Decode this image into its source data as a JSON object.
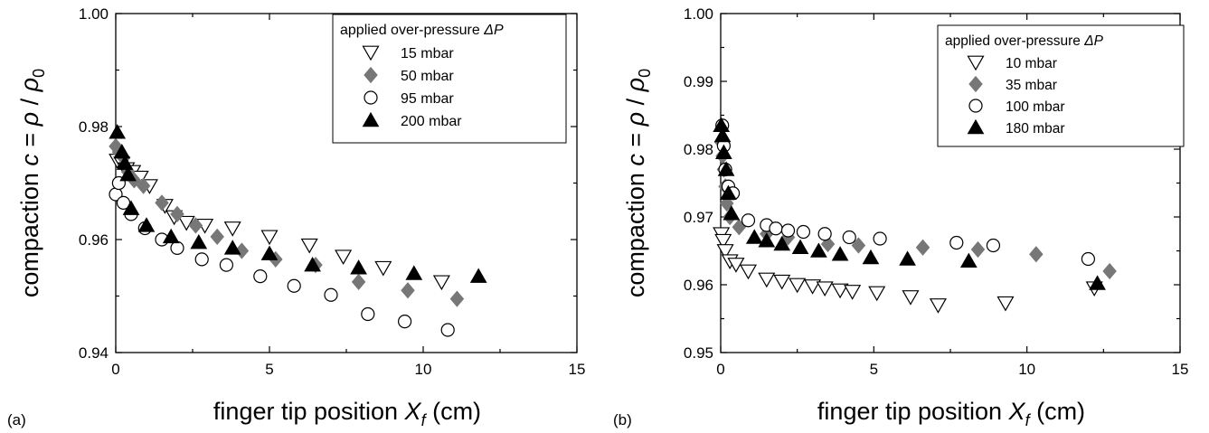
{
  "chart_data": [
    {
      "type": "scatter",
      "panel_label": "(a)",
      "xlabel_main": "finger tip position ",
      "xlabel_var": "X",
      "xlabel_sub": "f",
      "xlabel_unit": "  (cm)",
      "ylabel_main": "compaction ",
      "ylabel_var": "c",
      "ylabel_eq": " = ",
      "ylabel_rho": "ρ",
      "ylabel_div": " / ",
      "ylabel_rho0": "ρ",
      "ylabel_sub": "0",
      "xlim": [
        0,
        15
      ],
      "ylim": [
        0.94,
        1.0
      ],
      "xticks": [
        0,
        5,
        10,
        15
      ],
      "xtick_labels": [
        "0",
        "5",
        "10",
        "15"
      ],
      "yticks": [
        0.94,
        0.96,
        0.98,
        1.0
      ],
      "ytick_labels": [
        "0.94",
        "0.96",
        "0.98",
        "1.00"
      ],
      "legend_title_main": "applied over-pressure ",
      "legend_title_var": "ΔP",
      "legend_position": "top-right",
      "grid": false,
      "series": [
        {
          "name": "15 mbar",
          "marker": "triangle-down-open",
          "color": "#000000",
          "points": [
            [
              0.05,
              0.974
            ],
            [
              0.2,
              0.9735
            ],
            [
              0.35,
              0.9725
            ],
            [
              0.55,
              0.972
            ],
            [
              0.8,
              0.971
            ],
            [
              1.1,
              0.9695
            ],
            [
              1.6,
              0.966
            ],
            [
              1.9,
              0.964
            ],
            [
              2.3,
              0.963
            ],
            [
              2.9,
              0.9625
            ],
            [
              3.8,
              0.962
            ],
            [
              5.0,
              0.9605
            ],
            [
              6.3,
              0.959
            ],
            [
              7.4,
              0.957
            ],
            [
              8.7,
              0.955
            ],
            [
              10.6,
              0.9525
            ]
          ]
        },
        {
          "name": "50 mbar",
          "marker": "diamond",
          "color": "#777777",
          "points": [
            [
              0.0,
              0.9765
            ],
            [
              0.1,
              0.9755
            ],
            [
              0.25,
              0.9745
            ],
            [
              0.4,
              0.972
            ],
            [
              0.6,
              0.9705
            ],
            [
              0.9,
              0.9695
            ],
            [
              1.5,
              0.9665
            ],
            [
              2.0,
              0.9645
            ],
            [
              2.6,
              0.9625
            ],
            [
              3.3,
              0.9605
            ],
            [
              4.1,
              0.958
            ],
            [
              5.2,
              0.9565
            ],
            [
              6.5,
              0.9555
            ],
            [
              7.9,
              0.9525
            ],
            [
              9.5,
              0.951
            ],
            [
              11.1,
              0.9495
            ]
          ]
        },
        {
          "name": "95 mbar",
          "marker": "circle-open",
          "color": "#000000",
          "points": [
            [
              0.0,
              0.968
            ],
            [
              0.1,
              0.97
            ],
            [
              0.25,
              0.9665
            ],
            [
              0.5,
              0.9645
            ],
            [
              0.95,
              0.962
            ],
            [
              1.5,
              0.96
            ],
            [
              2.0,
              0.9585
            ],
            [
              2.8,
              0.9565
            ],
            [
              3.6,
              0.9555
            ],
            [
              4.7,
              0.9535
            ],
            [
              5.8,
              0.9518
            ],
            [
              7.0,
              0.9502
            ],
            [
              8.2,
              0.9468
            ],
            [
              9.4,
              0.9455
            ],
            [
              10.8,
              0.944
            ]
          ]
        },
        {
          "name": "200 mbar",
          "marker": "triangle-up",
          "color": "#000000",
          "points": [
            [
              0.05,
              0.979
            ],
            [
              0.2,
              0.9755
            ],
            [
              0.3,
              0.9735
            ],
            [
              0.4,
              0.9715
            ],
            [
              0.5,
              0.9655
            ],
            [
              1.0,
              0.9625
            ],
            [
              1.8,
              0.9605
            ],
            [
              2.7,
              0.9595
            ],
            [
              3.8,
              0.9585
            ],
            [
              5.0,
              0.9575
            ],
            [
              6.4,
              0.9555
            ],
            [
              7.9,
              0.955
            ],
            [
              9.7,
              0.954
            ],
            [
              11.8,
              0.9535
            ]
          ]
        }
      ]
    },
    {
      "type": "scatter",
      "panel_label": "(b)",
      "xlabel_main": "finger tip position ",
      "xlabel_var": "X",
      "xlabel_sub": "f",
      "xlabel_unit": "  (cm)",
      "ylabel_main": "compaction ",
      "ylabel_var": "c",
      "ylabel_eq": " = ",
      "ylabel_rho": "ρ",
      "ylabel_div": " / ",
      "ylabel_rho0": "ρ",
      "ylabel_sub": "0",
      "xlim": [
        0,
        15
      ],
      "ylim": [
        0.95,
        1.0
      ],
      "xticks": [
        0,
        5,
        10,
        15
      ],
      "xtick_labels": [
        "0",
        "5",
        "10",
        "15"
      ],
      "yticks": [
        0.95,
        0.96,
        0.97,
        0.98,
        0.99,
        1.0
      ],
      "ytick_labels": [
        "0.95",
        "0.96",
        "0.97",
        "0.98",
        "0.99",
        "1.00"
      ],
      "legend_title_main": "applied over-pressure ",
      "legend_title_var": "ΔP",
      "legend_position": "top-right",
      "grid": false,
      "series": [
        {
          "name": "10 mbar",
          "marker": "triangle-down-open",
          "color": "#000000",
          "points": [
            [
              0.02,
              0.9675
            ],
            [
              0.08,
              0.9665
            ],
            [
              0.15,
              0.965
            ],
            [
              0.3,
              0.9635
            ],
            [
              0.5,
              0.963
            ],
            [
              0.9,
              0.962
            ],
            [
              1.5,
              0.9608
            ],
            [
              2.0,
              0.9605
            ],
            [
              2.5,
              0.96
            ],
            [
              3.0,
              0.9598
            ],
            [
              3.4,
              0.9595
            ],
            [
              3.9,
              0.9592
            ],
            [
              4.3,
              0.959
            ],
            [
              5.1,
              0.9588
            ],
            [
              6.2,
              0.9582
            ],
            [
              7.1,
              0.957
            ],
            [
              9.3,
              0.9573
            ],
            [
              12.2,
              0.9595
            ]
          ]
        },
        {
          "name": "35 mbar",
          "marker": "diamond",
          "color": "#777777",
          "points": [
            [
              0.02,
              0.981
            ],
            [
              0.06,
              0.979
            ],
            [
              0.1,
              0.977
            ],
            [
              0.15,
              0.9745
            ],
            [
              0.2,
              0.972
            ],
            [
              0.3,
              0.97
            ],
            [
              0.6,
              0.9685
            ],
            [
              1.5,
              0.9675
            ],
            [
              2.2,
              0.967
            ],
            [
              3.5,
              0.966
            ],
            [
              4.5,
              0.9658
            ],
            [
              6.6,
              0.9655
            ],
            [
              8.4,
              0.9652
            ],
            [
              10.3,
              0.9645
            ],
            [
              12.7,
              0.962
            ]
          ]
        },
        {
          "name": "100 mbar",
          "marker": "circle-open",
          "color": "#000000",
          "points": [
            [
              0.05,
              0.9835
            ],
            [
              0.1,
              0.9805
            ],
            [
              0.15,
              0.977
            ],
            [
              0.25,
              0.9745
            ],
            [
              0.4,
              0.9735
            ],
            [
              0.9,
              0.9695
            ],
            [
              1.5,
              0.9688
            ],
            [
              1.8,
              0.9683
            ],
            [
              2.2,
              0.968
            ],
            [
              2.7,
              0.9678
            ],
            [
              3.4,
              0.9675
            ],
            [
              4.2,
              0.967
            ],
            [
              5.2,
              0.9668
            ],
            [
              7.7,
              0.9662
            ],
            [
              8.9,
              0.9658
            ],
            [
              12.0,
              0.9638
            ]
          ]
        },
        {
          "name": "180 mbar",
          "marker": "triangle-up",
          "color": "#000000",
          "points": [
            [
              0.02,
              0.9835
            ],
            [
              0.06,
              0.982
            ],
            [
              0.1,
              0.9795
            ],
            [
              0.18,
              0.977
            ],
            [
              0.25,
              0.9735
            ],
            [
              0.35,
              0.9705
            ],
            [
              1.1,
              0.967
            ],
            [
              1.5,
              0.9665
            ],
            [
              2.0,
              0.966
            ],
            [
              2.6,
              0.9655
            ],
            [
              3.2,
              0.965
            ],
            [
              3.9,
              0.9645
            ],
            [
              4.9,
              0.964
            ],
            [
              6.1,
              0.9638
            ],
            [
              8.1,
              0.9635
            ],
            [
              12.3,
              0.9602
            ]
          ]
        }
      ]
    }
  ]
}
